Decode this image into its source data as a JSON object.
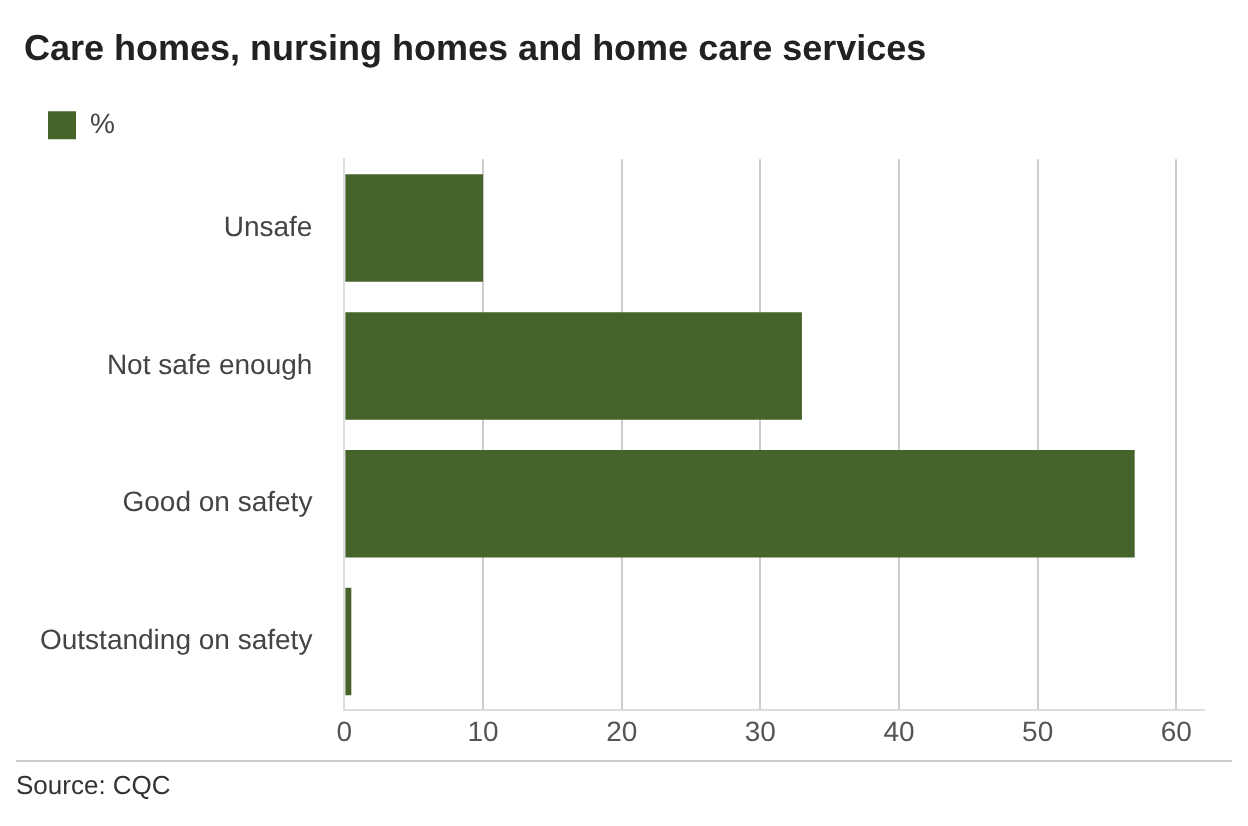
{
  "chart_data": {
    "type": "bar",
    "orientation": "horizontal",
    "title": "Care homes, nursing homes and home care services",
    "categories": [
      "Unsafe",
      "Not safe enough",
      "Good on safety",
      "Outstanding on safety"
    ],
    "series": [
      {
        "name": "%",
        "color": "#46642a",
        "values": [
          10,
          33,
          57,
          0.5
        ]
      }
    ],
    "xlim": [
      0,
      62
    ],
    "xticks": [
      0,
      10,
      20,
      30,
      40,
      50,
      60
    ],
    "grid": "x",
    "legend": "top left",
    "annotations": [
      "Source: CQC"
    ]
  }
}
